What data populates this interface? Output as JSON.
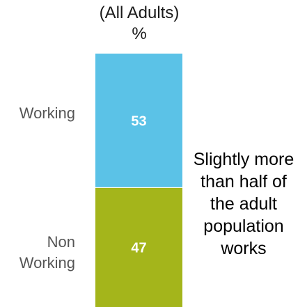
{
  "chart_data": {
    "type": "bar",
    "stacked": true,
    "orientation": "vertical",
    "title_lines": [
      "(All Adults)",
      "%"
    ],
    "categories": [
      "Working",
      "Non Working"
    ],
    "category_label_lines": [
      [
        "Working"
      ],
      [
        "Non",
        "Working"
      ]
    ],
    "values": [
      53,
      47
    ],
    "value_labels": [
      "53",
      "47"
    ],
    "colors": [
      "#5bc2e7",
      "#a4b51b"
    ],
    "ylim": [
      0,
      100
    ],
    "legend": "none",
    "grid": false
  },
  "annotation": {
    "lines": [
      "Slightly more",
      "than half of",
      "the adult",
      "population",
      "works"
    ]
  }
}
